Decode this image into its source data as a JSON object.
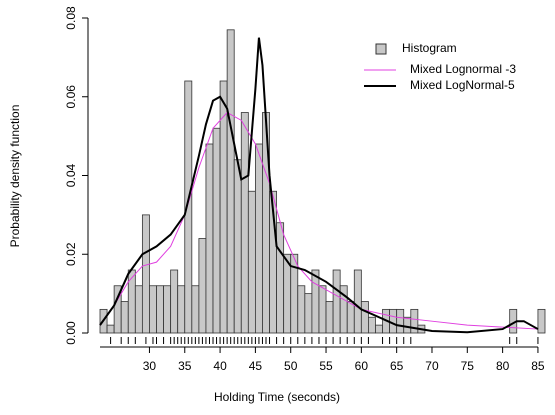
{
  "chart_data": {
    "type": "histogram",
    "xlabel": "Holding Time (seconds)",
    "ylabel": "Probability density function",
    "xlim": [
      23,
      86
    ],
    "ylim": [
      0,
      0.08
    ],
    "xticks": [
      30,
      35,
      40,
      45,
      50,
      55,
      60,
      65,
      70,
      75,
      80,
      85
    ],
    "yticks": [
      {
        "value": 0,
        "label": "0.00"
      },
      {
        "value": 0.02,
        "label": "0.02"
      },
      {
        "value": 0.04,
        "label": "0.04"
      },
      {
        "value": 0.06,
        "label": "0.06"
      },
      {
        "value": 0.08,
        "label": "0.08"
      }
    ],
    "legend": "top-right",
    "histogram": {
      "name": "Histogram",
      "color": "#c8c8c8",
      "bins": [
        23,
        24,
        25,
        26,
        27,
        28,
        29,
        30,
        31,
        32,
        33,
        34,
        35,
        36,
        37,
        38,
        39,
        40,
        41,
        42,
        43,
        44,
        45,
        46,
        47,
        48,
        49,
        50,
        51,
        52,
        53,
        54,
        55,
        56,
        57,
        58,
        59,
        60,
        61,
        62,
        63,
        64,
        65,
        66,
        67,
        68,
        69,
        70,
        71,
        72,
        73,
        74,
        75,
        76,
        77,
        78,
        79,
        80,
        81,
        82,
        83,
        84,
        85,
        86
      ],
      "values": [
        0.006,
        0.002,
        0.012,
        0.008,
        0.016,
        0.012,
        0.03,
        0.012,
        0.012,
        0.012,
        0.016,
        0.012,
        0.064,
        0.012,
        0.024,
        0.048,
        0.052,
        0.064,
        0.077,
        0.044,
        0.056,
        0.036,
        0.048,
        0.056,
        0.036,
        0.028,
        0.02,
        0.02,
        0.012,
        0.01,
        0.016,
        0.012,
        0.008,
        0.016,
        0.012,
        0.008,
        0.016,
        0.008,
        0.004,
        0.002,
        0.006,
        0.006,
        0.006,
        0.004,
        0.006,
        0.002,
        0,
        0,
        0,
        0,
        0,
        0,
        0,
        0,
        0,
        0,
        0,
        0,
        0.006,
        0,
        0,
        0,
        0.006
      ]
    },
    "series": [
      {
        "name": "Mixed Lognormal -3",
        "color": "#e040e0",
        "x": [
          23,
          25,
          27,
          29,
          31,
          33,
          35,
          37,
          39,
          41,
          43,
          45,
          47,
          49,
          51,
          53,
          55,
          58,
          60,
          65,
          70,
          75,
          80,
          85
        ],
        "values": [
          0.002,
          0.007,
          0.013,
          0.017,
          0.018,
          0.022,
          0.03,
          0.042,
          0.052,
          0.056,
          0.054,
          0.048,
          0.038,
          0.025,
          0.017,
          0.013,
          0.011,
          0.008,
          0.006,
          0.004,
          0.003,
          0.002,
          0.0015,
          0.001
        ]
      },
      {
        "name": "Mixed LogNormal-5",
        "color": "#000000",
        "x": [
          23,
          25,
          27,
          29,
          31,
          33,
          35,
          37,
          38,
          39,
          40,
          41,
          42,
          43,
          44,
          45,
          45.5,
          46,
          47,
          48,
          50,
          52,
          55,
          58,
          60,
          65,
          70,
          75,
          80,
          82,
          83,
          85
        ],
        "values": [
          0.002,
          0.007,
          0.015,
          0.02,
          0.022,
          0.025,
          0.03,
          0.045,
          0.053,
          0.059,
          0.06,
          0.057,
          0.048,
          0.039,
          0.04,
          0.062,
          0.075,
          0.068,
          0.04,
          0.022,
          0.017,
          0.016,
          0.013,
          0.009,
          0.006,
          0.002,
          0.0005,
          0.0002,
          0.001,
          0.003,
          0.003,
          0.001
        ]
      }
    ],
    "rug": [
      24.5,
      26,
      27,
      28,
      29.5,
      30.5,
      31,
      32,
      33,
      33.5,
      34,
      34.5,
      35,
      35.5,
      36,
      36.5,
      37,
      37.5,
      38,
      38.5,
      39,
      39.5,
      40,
      40.5,
      41,
      41.5,
      42,
      42.5,
      43,
      43.5,
      44,
      44.5,
      45,
      45.5,
      46,
      46.5,
      47,
      48,
      49,
      50,
      51,
      52,
      53,
      54,
      55,
      56,
      57,
      58,
      59,
      60,
      61,
      63,
      64,
      65,
      66,
      67,
      81,
      82,
      85
    ]
  }
}
